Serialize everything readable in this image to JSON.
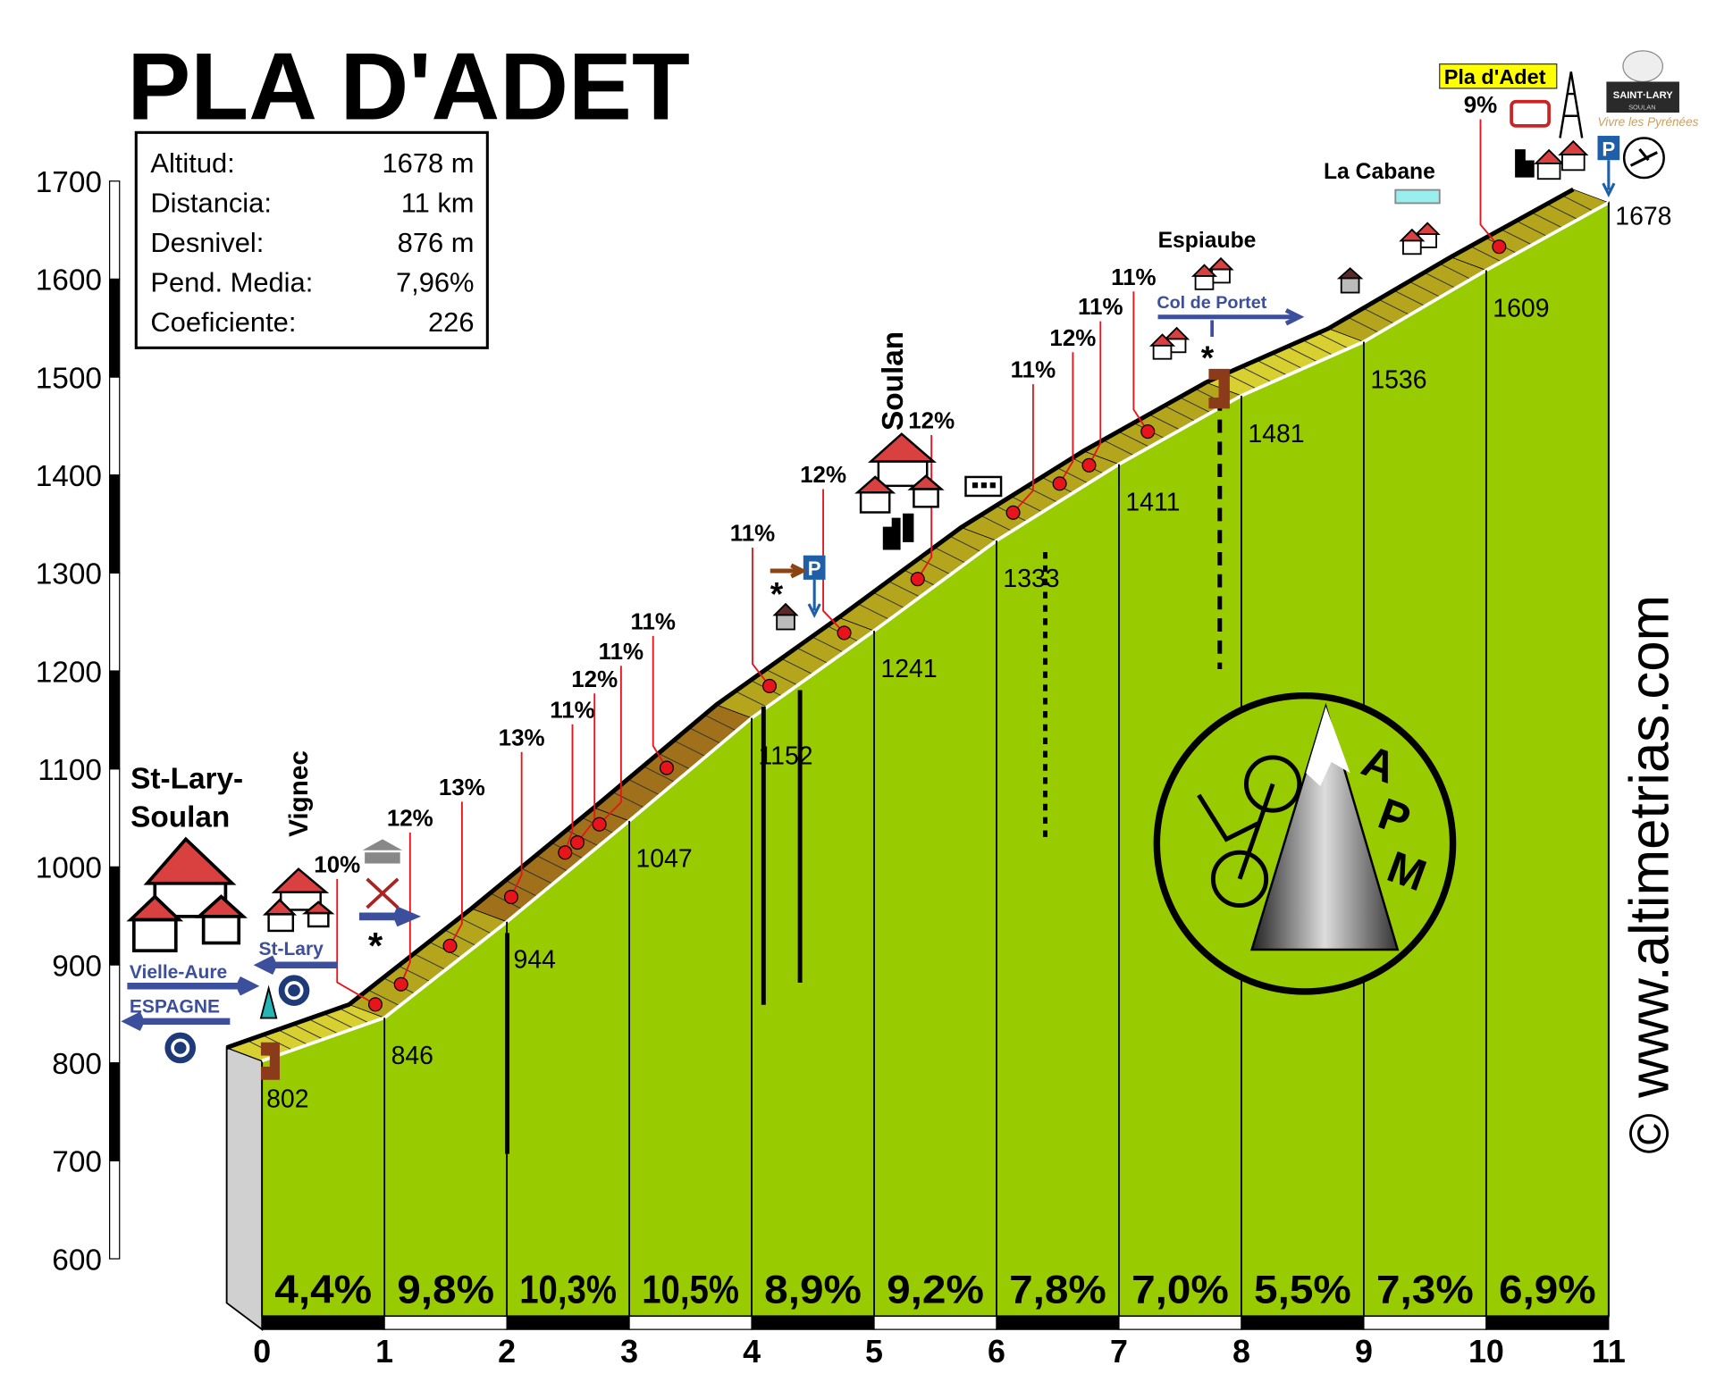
{
  "title": "PLA D'ADET",
  "stats": [
    {
      "label": "Altitud:",
      "value": "1678 m"
    },
    {
      "label": "Distancia:",
      "value": "11 km"
    },
    {
      "label": "Desnivel:",
      "value": "876 m"
    },
    {
      "label": "Pend. Media:",
      "value": "7,96%"
    },
    {
      "label": "Coeficiente:",
      "value": "226"
    }
  ],
  "chart_data": {
    "type": "area",
    "title": "PLA D'ADET",
    "xlabel": "",
    "ylabel": "",
    "xlim": [
      0,
      11
    ],
    "ylim": [
      600,
      1700
    ],
    "x_ticks": [
      "0",
      "1",
      "2",
      "3",
      "4",
      "5",
      "6",
      "7",
      "8",
      "9",
      "10",
      "11"
    ],
    "y_ticks": [
      "600",
      "700",
      "800",
      "900",
      "1000",
      "1100",
      "1200",
      "1300",
      "1400",
      "1500",
      "1600",
      "1700"
    ],
    "x": [
      0,
      1,
      2,
      3,
      4,
      5,
      6,
      7,
      8,
      9,
      10,
      11
    ],
    "altitudes": [
      802,
      846,
      944,
      1047,
      1152,
      1241,
      1333,
      1411,
      1481,
      1536,
      1609,
      1678
    ],
    "altitude_labels": [
      "802",
      "846",
      "944",
      "1047",
      "1152",
      "1241",
      "1333",
      "1411",
      "1481",
      "1536",
      "1609",
      "1678"
    ],
    "segment_gradients": [
      "4,4%",
      "9,8%",
      "10,3%",
      "10,5%",
      "8,9%",
      "9,2%",
      "7,8%",
      "7,0%",
      "5,5%",
      "7,3%",
      "6,9%"
    ],
    "max_gradient_labels": [
      "10%",
      "12%",
      "13%",
      "13%",
      "11%",
      "12%",
      "11%",
      "11%",
      "11%",
      "12%",
      "12%",
      "11%",
      "12%",
      "11%",
      "11%",
      "9%"
    ],
    "places": {
      "st_lary_soulan_1": "St-Lary-",
      "st_lary_soulan_2": "Soulan",
      "vignec": "Vignec",
      "soulan": "Soulan",
      "espiaube": "Espiaube",
      "la_cabane": "La Cabane",
      "pla_dadet": "Pla d'Adet"
    },
    "directions": {
      "st_lary": "St-Lary",
      "vielle_aure": "Vielle-Aure",
      "espagne": "ESPAGNE",
      "col_de_portet": "Col de Portet"
    },
    "colors": {
      "profile_fill": "#99cc00",
      "road_band": "#b5a51c",
      "steep_band": "#8b4513",
      "gentle_band": "#e8e020",
      "marker": "#e8141c",
      "direction_blue": "#3c4f9c",
      "place_label_bg": "#ffff00"
    }
  },
  "watermark": "© www.altimetrias.com",
  "logo_apm": {
    "letters": [
      "A",
      "P",
      "M"
    ]
  },
  "logo_saint_lary": {
    "line1": "SAINT·LARY",
    "line2": "SOULAN",
    "tagline": "Vivre les Pyrénées"
  }
}
